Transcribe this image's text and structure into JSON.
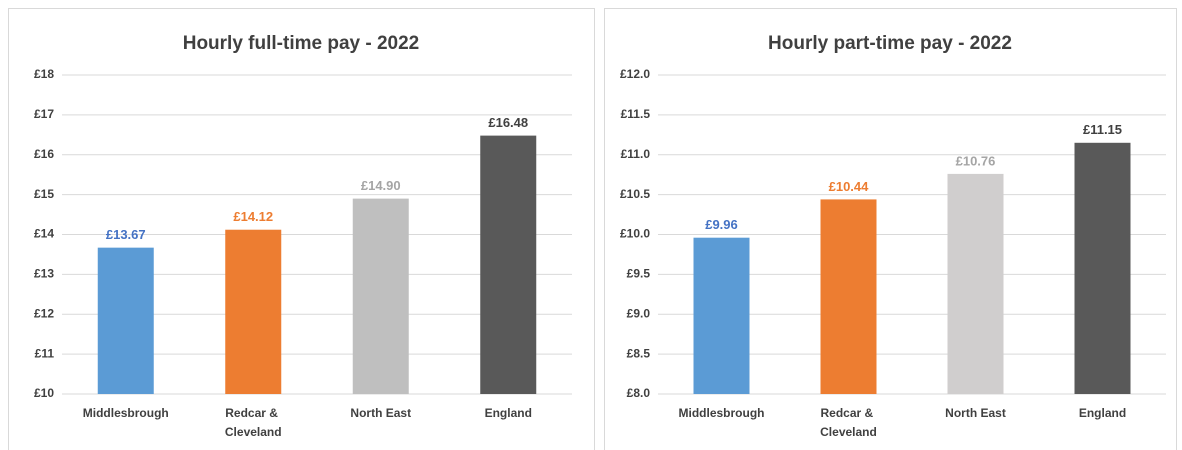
{
  "chart_data": [
    {
      "type": "bar",
      "title": "Hourly full-time pay - 2022",
      "categories": [
        "Middlesbrough",
        "Redcar & Cleveland",
        "North East",
        "England"
      ],
      "values": [
        13.67,
        14.12,
        14.9,
        16.48
      ],
      "value_labels": [
        "£13.67",
        "£14.12",
        "£14.90",
        "£16.48"
      ],
      "colors": [
        "#5b9bd5",
        "#ed7d31",
        "#bfbfbf",
        "#595959"
      ],
      "value_label_colors": [
        "#4472c4",
        "#ed7d31",
        "#a5a5a5",
        "#404040"
      ],
      "ylim": [
        10,
        18
      ],
      "yticks": [
        {
          "value": 10,
          "label": "£10"
        },
        {
          "value": 11,
          "label": "£11"
        },
        {
          "value": 12,
          "label": "£12"
        },
        {
          "value": 13,
          "label": "£13"
        },
        {
          "value": 14,
          "label": "£14"
        },
        {
          "value": 15,
          "label": "£15"
        },
        {
          "value": 16,
          "label": "£16"
        },
        {
          "value": 17,
          "label": "£17"
        },
        {
          "value": 18,
          "label": "£18"
        }
      ],
      "grid": true
    },
    {
      "type": "bar",
      "title": "Hourly part-time pay - 2022",
      "categories": [
        "Middlesbrough",
        "Redcar & Cleveland",
        "North East",
        "England"
      ],
      "values": [
        9.96,
        10.44,
        10.76,
        11.15
      ],
      "value_labels": [
        "£9.96",
        "£10.44",
        "£10.76",
        "£11.15"
      ],
      "colors": [
        "#5b9bd5",
        "#ed7d31",
        "#d0cece",
        "#595959"
      ],
      "value_label_colors": [
        "#4472c4",
        "#ed7d31",
        "#a5a5a5",
        "#404040"
      ],
      "ylim": [
        8,
        12
      ],
      "yticks": [
        {
          "value": 8,
          "label": "£8.0"
        },
        {
          "value": 8.5,
          "label": "£8.5"
        },
        {
          "value": 9,
          "label": "£9.0"
        },
        {
          "value": 9.5,
          "label": "£9.5"
        },
        {
          "value": 10,
          "label": "£10.0"
        },
        {
          "value": 10.5,
          "label": "£10.5"
        },
        {
          "value": 11,
          "label": "£11.0"
        },
        {
          "value": 11.5,
          "label": "£11.5"
        },
        {
          "value": 12,
          "label": "£12.0"
        }
      ],
      "grid": true
    }
  ]
}
